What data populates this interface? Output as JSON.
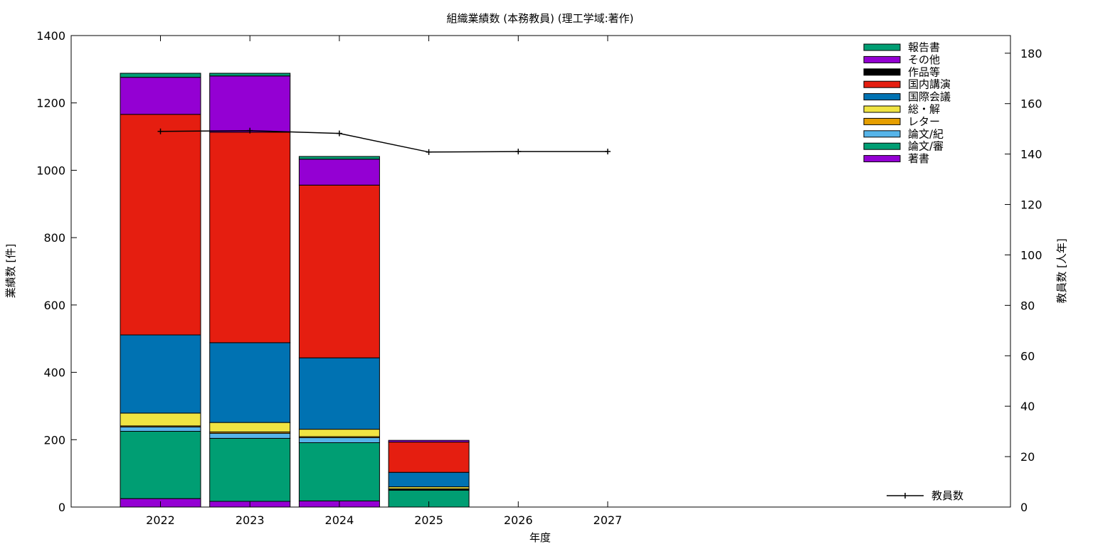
{
  "chart_data": {
    "type": "bar",
    "title": "組織業績数 (本務教員) (理工学域:著作)",
    "xlabel": "年度",
    "ylabel": "業績数 [件]",
    "y2label": "教員数 [人年]",
    "categories": [
      "2022",
      "2023",
      "2024",
      "2025",
      "2026",
      "2027"
    ],
    "ylim": [
      0,
      1400
    ],
    "y2lim": [
      0,
      187
    ],
    "yticks": [
      0,
      200,
      400,
      600,
      800,
      1000,
      1200,
      1400
    ],
    "y2ticks": [
      0,
      20,
      40,
      60,
      80,
      100,
      120,
      140,
      160,
      180
    ],
    "stacked": true,
    "legend_position": "top-right",
    "grid": false,
    "series": [
      {
        "name": "著書",
        "color": "#9400d3",
        "values": [
          25,
          17,
          18,
          0,
          0,
          0
        ]
      },
      {
        "name": "論文/審",
        "color": "#009e73",
        "values": [
          200,
          187,
          173,
          50,
          0,
          0
        ]
      },
      {
        "name": "論文/紀",
        "color": "#56b4e9",
        "values": [
          13,
          15,
          15,
          2,
          0,
          0
        ]
      },
      {
        "name": "レター",
        "color": "#e69f00",
        "values": [
          3,
          4,
          3,
          2,
          0,
          0
        ]
      },
      {
        "name": "総・解",
        "color": "#f0e442",
        "values": [
          38,
          28,
          22,
          6,
          0,
          0
        ]
      },
      {
        "name": "国際会議",
        "color": "#0072b2",
        "values": [
          232,
          237,
          212,
          43,
          0,
          0
        ]
      },
      {
        "name": "国内講演",
        "color": "#e51e10",
        "values": [
          655,
          625,
          513,
          90,
          0,
          0
        ]
      },
      {
        "name": "作品等",
        "color": "#000000",
        "values": [
          0,
          0,
          0,
          0,
          0,
          0
        ]
      },
      {
        "name": "その他",
        "color": "#9400d3",
        "values": [
          110,
          167,
          77,
          5,
          0,
          0
        ]
      },
      {
        "name": "報告書",
        "color": "#009e73",
        "values": [
          12,
          8,
          8,
          0,
          0,
          0
        ]
      }
    ],
    "line_series": {
      "name": "教員数",
      "color": "#000000",
      "axis": "y2",
      "values": [
        149,
        149.3,
        148.2,
        140.8,
        141,
        141
      ]
    }
  }
}
